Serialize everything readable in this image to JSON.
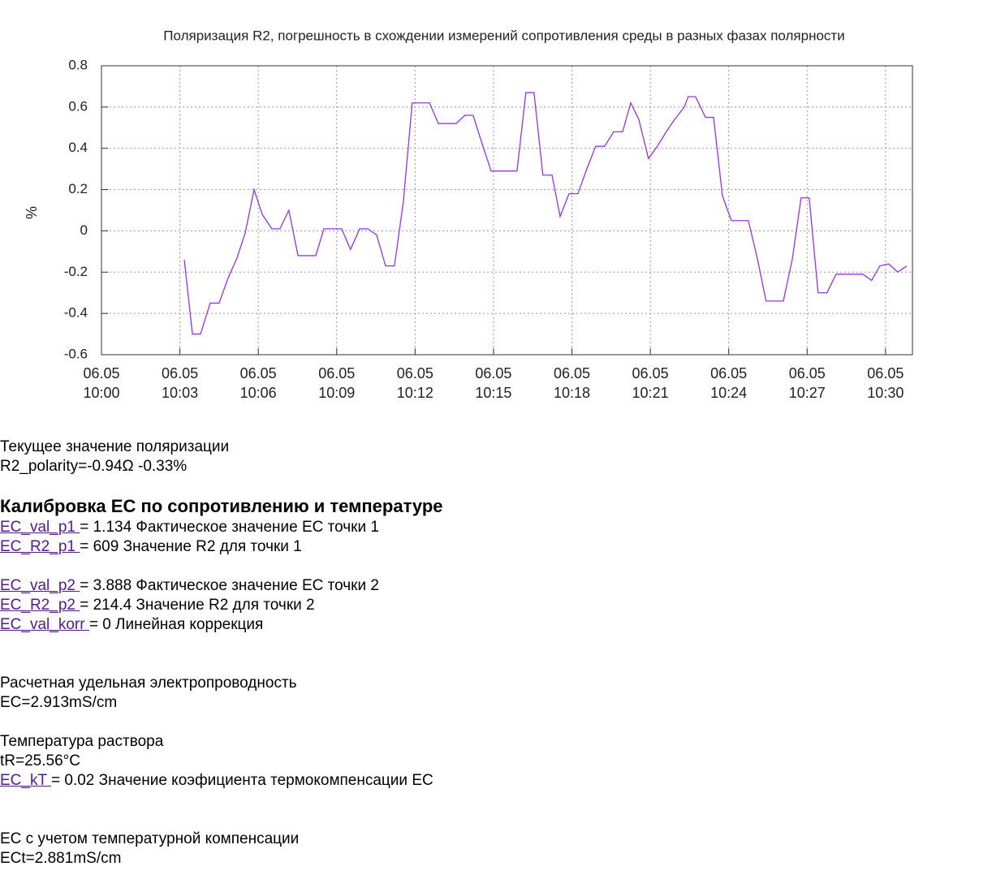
{
  "chart_data": {
    "type": "line",
    "title": "Поляризация R2, погрешность в схождении измерений сопротивления среды в разных фазах полярности",
    "ylabel": "%",
    "x": [
      3.17,
      3.48,
      3.79,
      4.16,
      4.5,
      4.84,
      5.19,
      5.5,
      5.84,
      6.15,
      6.52,
      6.83,
      7.17,
      7.52,
      7.86,
      8.2,
      8.51,
      8.85,
      9.19,
      9.53,
      9.88,
      10.19,
      10.53,
      10.87,
      11.21,
      11.55,
      11.89,
      12.24,
      12.55,
      12.89,
      13.23,
      13.57,
      13.91,
      14.22,
      14.57,
      14.91,
      15.25,
      15.59,
      15.9,
      16.24,
      16.55,
      16.89,
      17.24,
      17.55,
      17.89,
      18.23,
      18.57,
      18.91,
      19.25,
      19.6,
      19.94,
      20.25,
      20.56,
      20.93,
      21.27,
      21.61,
      21.93,
      22.3,
      22.45,
      22.73,
      23.11,
      23.42,
      23.76,
      24.1,
      24.44,
      24.75,
      25.09,
      25.43,
      25.78,
      26.09,
      26.43,
      26.77,
      27.08,
      27.42,
      27.76,
      28.11,
      28.45,
      28.79,
      29.13,
      29.47,
      29.78,
      30.12,
      30.47,
      30.81
    ],
    "series": [
      {
        "color": "#9b30e8",
        "values": [
          -0.14,
          -0.5,
          -0.5,
          -0.35,
          -0.35,
          -0.23,
          -0.13,
          -0.01,
          0.2,
          0.08,
          0.01,
          0.01,
          0.1,
          -0.12,
          -0.12,
          -0.12,
          0.01,
          0.01,
          0.01,
          -0.09,
          0.01,
          0.01,
          -0.02,
          -0.17,
          -0.17,
          0.14,
          0.62,
          0.62,
          0.62,
          0.52,
          0.52,
          0.52,
          0.56,
          0.56,
          0.42,
          0.29,
          0.29,
          0.29,
          0.29,
          0.67,
          0.67,
          0.27,
          0.27,
          0.07,
          0.18,
          0.18,
          0.3,
          0.41,
          0.41,
          0.48,
          0.48,
          0.62,
          0.54,
          0.35,
          0.41,
          0.48,
          0.54,
          0.6,
          0.65,
          0.65,
          0.55,
          0.55,
          0.17,
          0.05,
          0.05,
          0.05,
          -0.13,
          -0.34,
          -0.34,
          -0.34,
          -0.14,
          0.16,
          0.16,
          -0.3,
          -0.3,
          -0.21,
          -0.21,
          -0.21,
          -0.21,
          -0.24,
          -0.17,
          -0.16,
          -0.2,
          -0.17
        ]
      }
    ],
    "xlim": [
      0,
      31.03
    ],
    "xticks": [
      {
        "value": 0,
        "label": "06.05 10:00"
      },
      {
        "value": 3,
        "label": "06.05 10:03"
      },
      {
        "value": 6,
        "label": "06.05 10:06"
      },
      {
        "value": 9,
        "label": "06.05 10:09"
      },
      {
        "value": 12,
        "label": "06.05 10:12"
      },
      {
        "value": 15,
        "label": "06.05 10:15"
      },
      {
        "value": 18,
        "label": "06.05 10:18"
      },
      {
        "value": 21,
        "label": "06.05 10:21"
      },
      {
        "value": 24,
        "label": "06.05 10:24"
      },
      {
        "value": 27,
        "label": "06.05 10:27"
      },
      {
        "value": 30,
        "label": "06.05 10:30"
      }
    ],
    "ylim": [
      -0.6,
      0.8
    ],
    "yticks": [
      -0.6,
      -0.4,
      -0.2,
      0,
      0.2,
      0.4,
      0.6,
      0.8
    ],
    "grid": true
  },
  "status": {
    "label": "Текущее значение поляризации",
    "value": "R2_polarity=-0.94Ω -0.33%"
  },
  "calibration": {
    "title": "Калибровка ЕС по сопротивлению и температуре",
    "params": [
      {
        "link": "EC_val_p1 ",
        "text": "= 1.134 Фактическое значение ЕС точки 1"
      },
      {
        "link": "EC_R2_p1 ",
        "text": "= 609 Значение R2 для точки 1"
      },
      {
        "link": "EC_val_p2 ",
        "text": "= 3.888 Фактическое значение ЕС точки 2"
      },
      {
        "link": "EC_R2_p2 ",
        "text": "= 214.4 Значение R2 для точки 2"
      },
      {
        "link": "EC_val_korr ",
        "text": "= 0 Линейная коррекция"
      }
    ]
  },
  "ec": {
    "label": "Расчетная удельная электропроводность",
    "value": "EC=2.913mS/cm"
  },
  "temperature": {
    "label": "Температура раствора",
    "value": "tR=25.56°C",
    "param": {
      "link": "EC_kT ",
      "text": "= 0.02 Значение коэфициента термокомпенсации ЕС"
    }
  },
  "ect": {
    "label": "ЕС с учетом температурной компенсации",
    "value": "ECt=2.881mS/cm"
  }
}
